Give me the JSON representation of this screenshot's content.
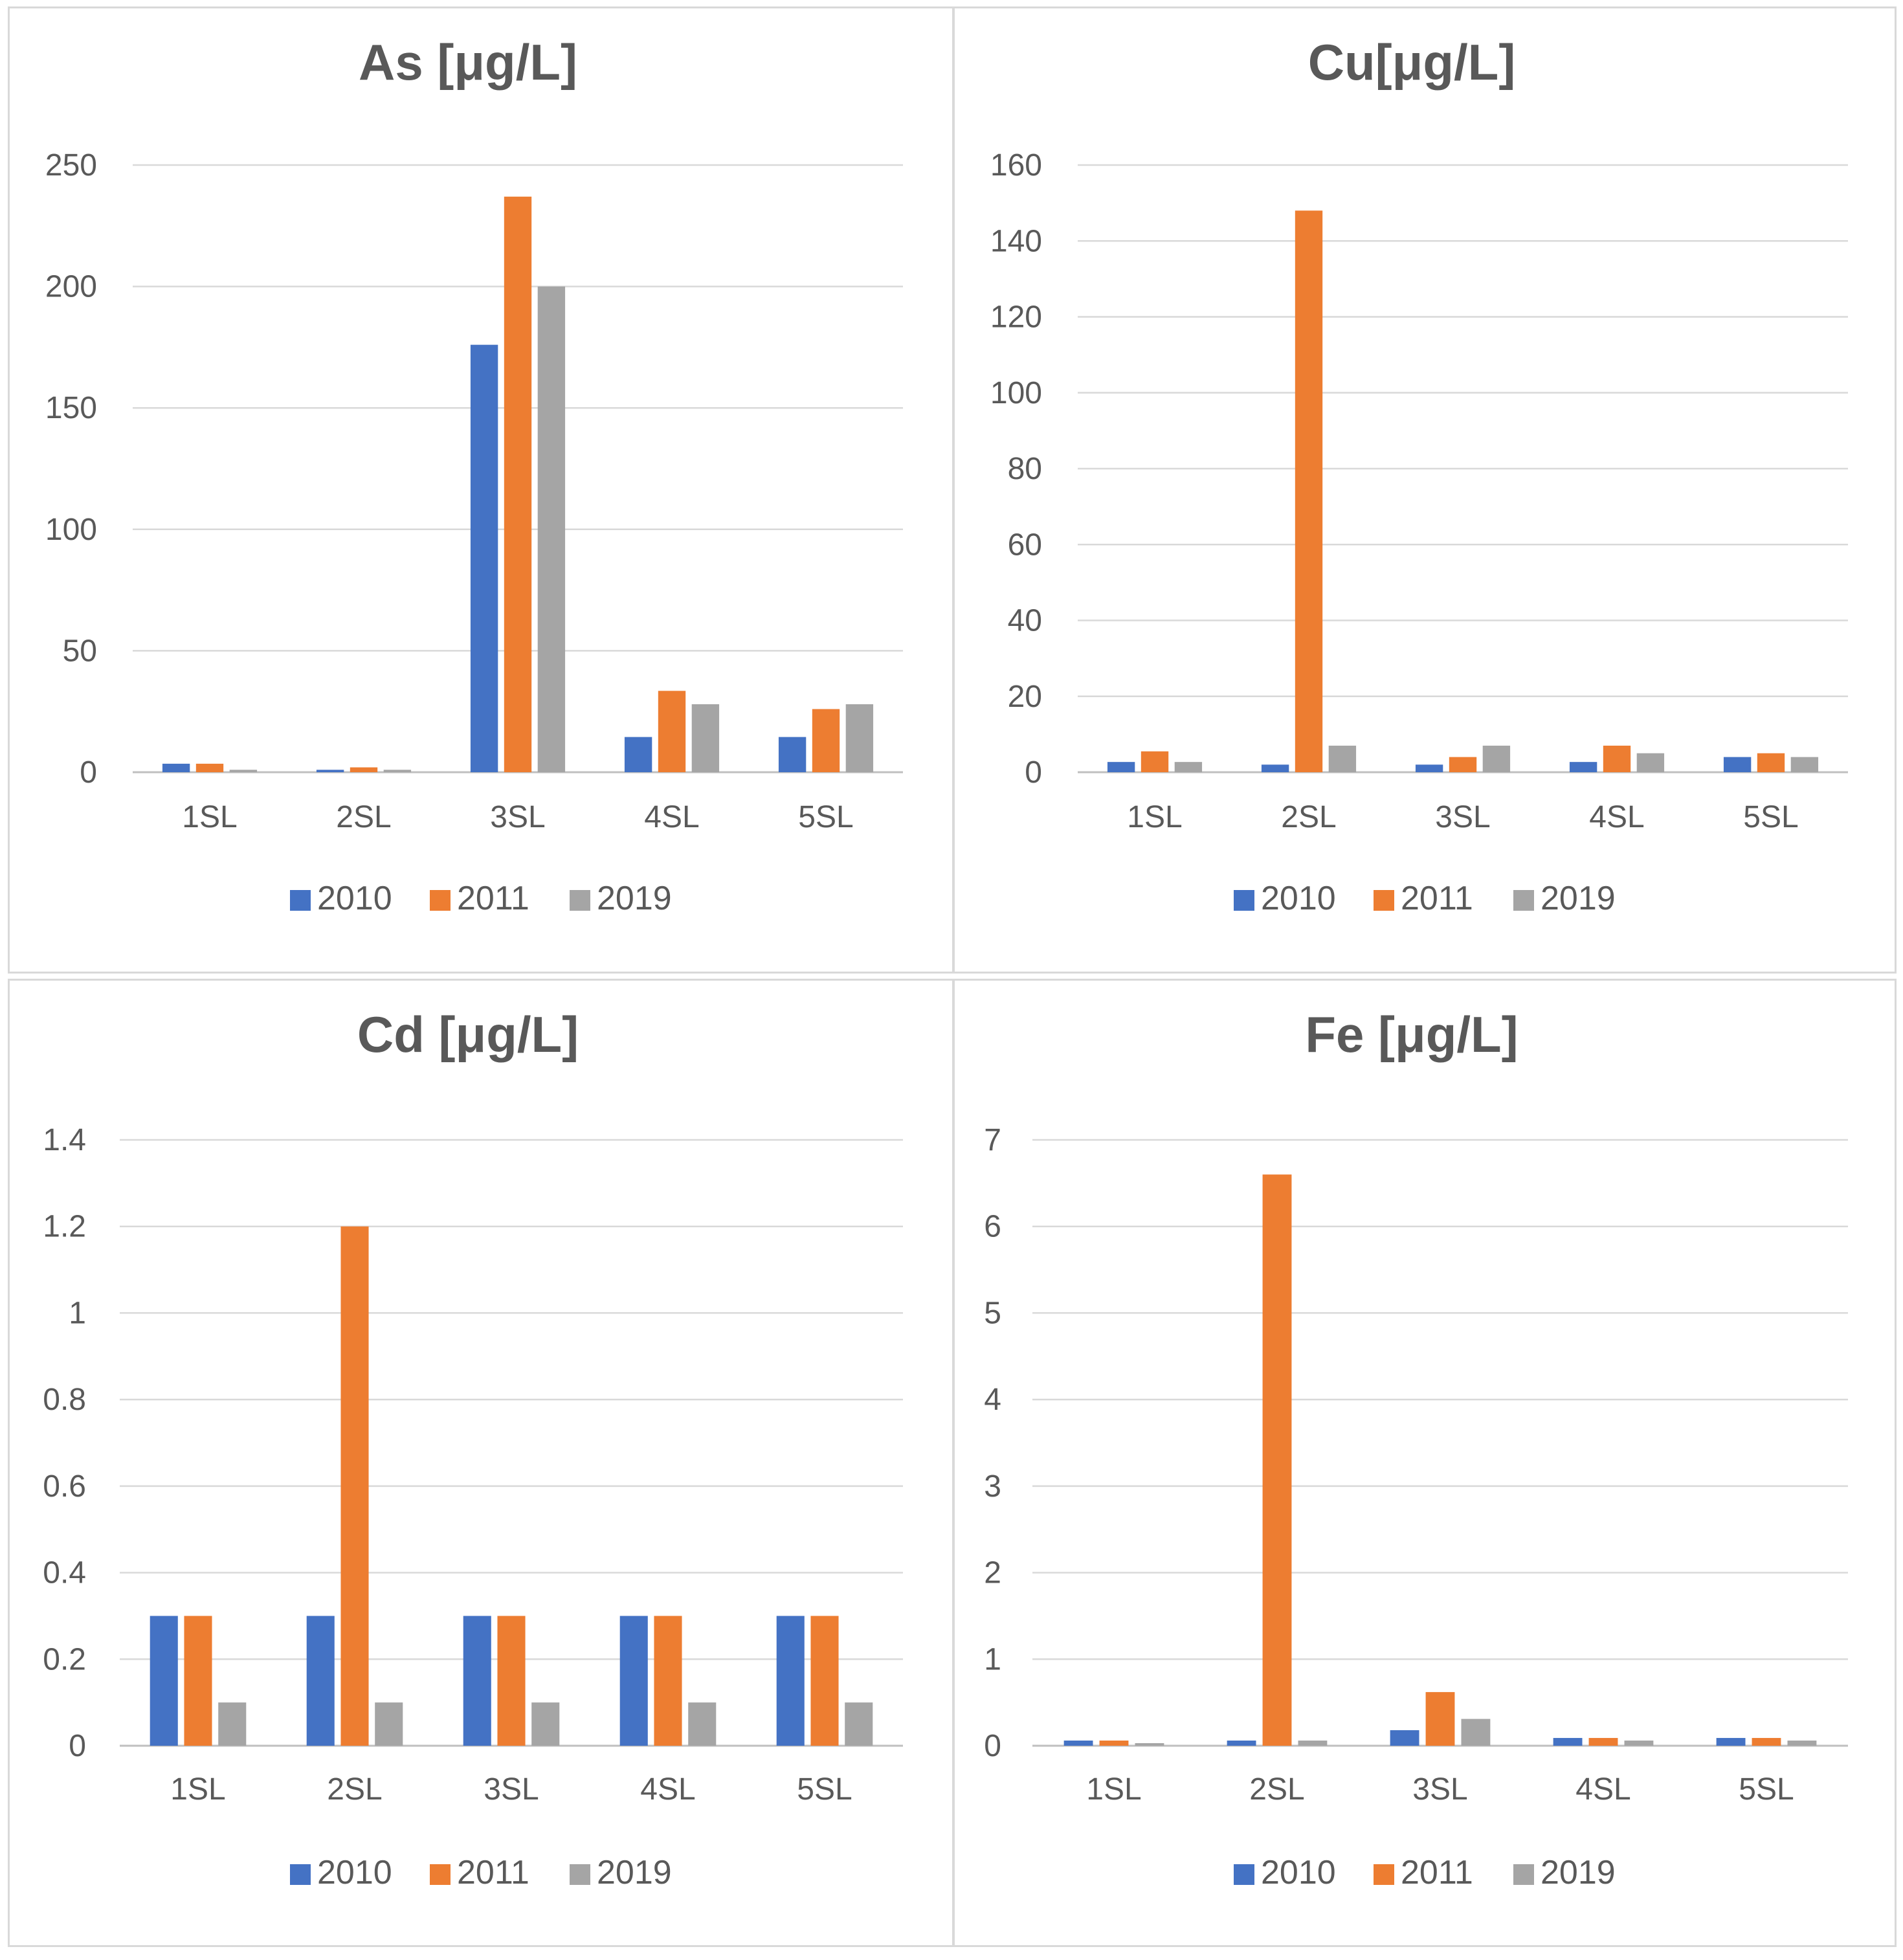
{
  "colors": {
    "2010": "#4472C4",
    "2011": "#ED7D31",
    "2019": "#A5A5A5",
    "grid": "#D9D9D9",
    "axis": "#BFBFBF",
    "title": "#595959",
    "tick": "#595959"
  },
  "chart_data": [
    {
      "type": "bar",
      "title": "As [μg/L]",
      "xlabel": "",
      "ylabel": "",
      "categories": [
        "1SL",
        "2SL",
        "3SL",
        "4SL",
        "5SL"
      ],
      "ylim": [
        0,
        250
      ],
      "yticks": [
        0,
        50,
        100,
        150,
        200,
        250
      ],
      "ytick_labels": [
        "0",
        "50",
        "100",
        "150",
        "200",
        "250"
      ],
      "grid": true,
      "legend_position": "bottom",
      "series": [
        {
          "name": "2010",
          "values": [
            3.5,
            1,
            176,
            14.5,
            14.5
          ]
        },
        {
          "name": "2011",
          "values": [
            3.5,
            2,
            237,
            33.5,
            26
          ]
        },
        {
          "name": "2019",
          "values": [
            1,
            1,
            200,
            28,
            28
          ]
        }
      ]
    },
    {
      "type": "bar",
      "title": "Cu[μg/L]",
      "xlabel": "",
      "ylabel": "",
      "categories": [
        "1SL",
        "2SL",
        "3SL",
        "4SL",
        "5SL"
      ],
      "ylim": [
        0,
        160
      ],
      "yticks": [
        0,
        20,
        40,
        60,
        80,
        100,
        120,
        140,
        160
      ],
      "ytick_labels": [
        "0",
        "20",
        "40",
        "60",
        "80",
        "100",
        "120",
        "140",
        "160"
      ],
      "grid": true,
      "legend_position": "bottom",
      "series": [
        {
          "name": "2010",
          "values": [
            2.7,
            2,
            2,
            2.7,
            4
          ]
        },
        {
          "name": "2011",
          "values": [
            5.5,
            148,
            4,
            7,
            5
          ]
        },
        {
          "name": "2019",
          "values": [
            2.7,
            7,
            7,
            5,
            4
          ]
        }
      ]
    },
    {
      "type": "bar",
      "title": "Cd [μg/L]",
      "xlabel": "",
      "ylabel": "",
      "categories": [
        "1SL",
        "2SL",
        "3SL",
        "4SL",
        "5SL"
      ],
      "ylim": [
        0,
        1.4
      ],
      "yticks": [
        0,
        0.2,
        0.4,
        0.6,
        0.8,
        1,
        1.2,
        1.4
      ],
      "ytick_labels": [
        "0",
        "0.2",
        "0.4",
        "0.6",
        "0.8",
        "1",
        "1.2",
        "1.4"
      ],
      "grid": true,
      "legend_position": "bottom",
      "series": [
        {
          "name": "2010",
          "values": [
            0.3,
            0.3,
            0.3,
            0.3,
            0.3
          ]
        },
        {
          "name": "2011",
          "values": [
            0.3,
            1.2,
            0.3,
            0.3,
            0.3
          ]
        },
        {
          "name": "2019",
          "values": [
            0.1,
            0.1,
            0.1,
            0.1,
            0.1
          ]
        }
      ]
    },
    {
      "type": "bar",
      "title": "Fe [μg/L]",
      "xlabel": "",
      "ylabel": "",
      "categories": [
        "1SL",
        "2SL",
        "3SL",
        "4SL",
        "5SL"
      ],
      "ylim": [
        0,
        7
      ],
      "yticks": [
        0,
        1,
        2,
        3,
        4,
        5,
        6,
        7
      ],
      "ytick_labels": [
        "0",
        "1",
        "2",
        "3",
        "4",
        "5",
        "6",
        "7"
      ],
      "grid": true,
      "legend_position": "bottom",
      "series": [
        {
          "name": "2010",
          "values": [
            0.06,
            0.06,
            0.18,
            0.09,
            0.09
          ]
        },
        {
          "name": "2011",
          "values": [
            0.06,
            6.6,
            0.62,
            0.09,
            0.09
          ]
        },
        {
          "name": "2019",
          "values": [
            0.03,
            0.06,
            0.31,
            0.06,
            0.06
          ]
        }
      ]
    }
  ]
}
